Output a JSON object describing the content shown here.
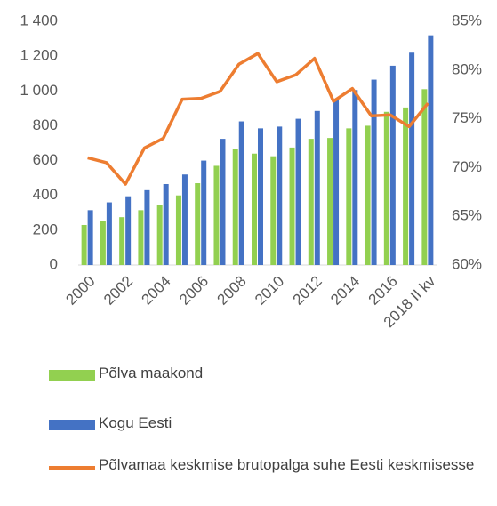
{
  "chart_data": {
    "type": "bar-line",
    "categories": [
      "2000",
      null,
      "2002",
      null,
      "2004",
      null,
      "2006",
      null,
      "2008",
      null,
      "2010",
      null,
      "2012",
      null,
      "2014",
      null,
      "2016",
      null,
      "2018 II kv"
    ],
    "series": [
      {
        "name": "Põlva maakond",
        "type": "bar",
        "color": "#92d050",
        "values": [
          230,
          255,
          275,
          315,
          345,
          400,
          470,
          570,
          665,
          640,
          625,
          675,
          725,
          730,
          785,
          800,
          880,
          905,
          1010
        ]
      },
      {
        "name": "Kogu Eesti",
        "type": "bar",
        "color": "#4472c4",
        "values": [
          315,
          360,
          395,
          430,
          465,
          520,
          600,
          725,
          825,
          785,
          795,
          840,
          885,
          950,
          1005,
          1065,
          1145,
          1220,
          1320
        ]
      },
      {
        "name": "Põlvamaa keskmise brutopalga suhe Eesti keskmisesse",
        "type": "line",
        "axis": "y2",
        "color": "#ed7d31",
        "values": [
          71,
          70.5,
          68.3,
          72,
          73,
          77,
          77.1,
          77.8,
          80.6,
          81.7,
          78.8,
          79.5,
          81.2,
          76.8,
          78.1,
          75.3,
          75.4,
          74.2,
          76.6
        ]
      }
    ],
    "ylim": [
      0,
      1400
    ],
    "yticks": [
      0,
      200,
      400,
      600,
      800,
      {
        "value": 1000,
        "label": "1 000"
      },
      {
        "value": 1200,
        "label": "1 200"
      },
      {
        "value": 1400,
        "label": "1 400"
      }
    ],
    "y2lim": [
      60,
      85
    ],
    "y2ticks": [
      {
        "value": 60,
        "label": "60%"
      },
      {
        "value": 65,
        "label": "65%"
      },
      {
        "value": 70,
        "label": "70%"
      },
      {
        "value": 75,
        "label": "75%"
      },
      {
        "value": 80,
        "label": "80%"
      },
      {
        "value": 85,
        "label": "85%"
      }
    ],
    "legend": "bottom"
  }
}
